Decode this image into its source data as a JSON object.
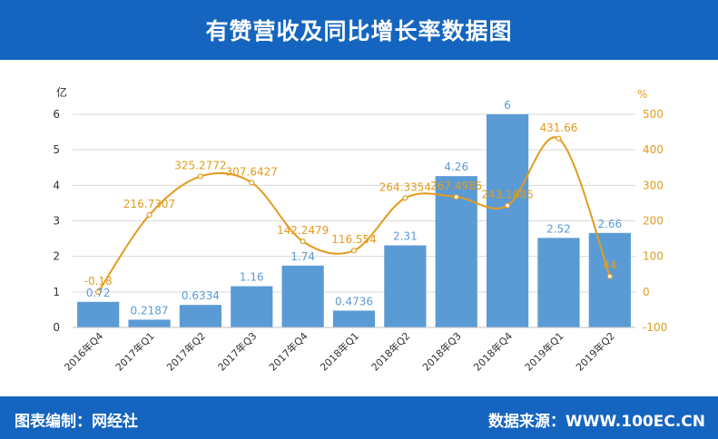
{
  "title": "有赞营收及同比增长率数据图",
  "footer": {
    "left": "图表编制：网经社",
    "right": "数据来源：WWW.100EC.CN"
  },
  "colors": {
    "header": "#1565c0",
    "bar": "#5b9bd5",
    "line": "#e39b1c",
    "left_axis_text": "#333333",
    "right_axis_text": "#e39b1c"
  },
  "chart_data": {
    "type": "bar",
    "categories": [
      "2016年Q4",
      "2017年Q1",
      "2017年Q2",
      "2017年Q3",
      "2017年Q4",
      "2018年Q1",
      "2018年Q2",
      "2018年Q3",
      "2018年Q4",
      "2019年Q1",
      "2019年Q2"
    ],
    "series": [
      {
        "type": "bar",
        "axis": "left",
        "values": [
          0.72,
          0.2187,
          0.6334,
          1.16,
          1.74,
          0.4736,
          2.31,
          4.26,
          6,
          2.52,
          2.66
        ],
        "labels": [
          "0.72",
          "0.2187",
          "0.6334",
          "1.16",
          "1.74",
          "0.4736",
          "2.31",
          "4.26",
          "6",
          "2.52",
          "2.66"
        ]
      },
      {
        "type": "line",
        "axis": "right",
        "values": [
          -0.18,
          216.7307,
          325.2772,
          307.6427,
          142.2479,
          116.554,
          264.3354,
          267.4985,
          243.1685,
          431.66,
          44
        ],
        "labels": [
          "-0.18",
          "216.7307",
          "325.2772",
          "307.6427",
          "142.2479",
          "116.554",
          "264.3354",
          "267.4985",
          "243.1685",
          "431.66",
          "44"
        ]
      }
    ],
    "left_axis": {
      "unit": "亿",
      "ylim": [
        0,
        6
      ],
      "ticks": [
        "0",
        "1",
        "2",
        "3",
        "4",
        "5",
        "6"
      ]
    },
    "right_axis": {
      "unit": "%",
      "ylim": [
        -100,
        500
      ],
      "ticks": [
        "-100",
        "0",
        "100",
        "200",
        "300",
        "400",
        "500"
      ]
    },
    "grid": true
  }
}
